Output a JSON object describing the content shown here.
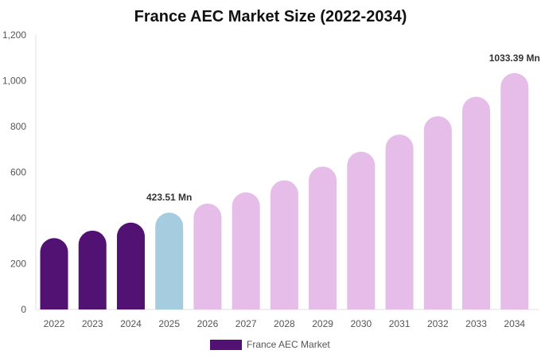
{
  "chart_data": {
    "type": "bar",
    "title": "France AEC Market Size (2022-2034)",
    "xlabel": "",
    "ylabel": "",
    "categories": [
      "2022",
      "2023",
      "2024",
      "2025",
      "2026",
      "2027",
      "2028",
      "2029",
      "2030",
      "2031",
      "2032",
      "2033",
      "2034"
    ],
    "series": [
      {
        "name": "France AEC Market",
        "values": [
          312,
          345,
          380,
          423.51,
          463,
          512,
          565,
          625,
          690,
          765,
          845,
          930,
          1033.39
        ]
      }
    ],
    "bar_colors": [
      "#521273",
      "#521273",
      "#521273",
      "#a6cce0",
      "#e6bce8",
      "#e6bce8",
      "#e6bce8",
      "#e6bce8",
      "#e6bce8",
      "#e6bce8",
      "#e6bce8",
      "#e6bce8",
      "#e6bce8"
    ],
    "legend_color": "#521273",
    "data_labels": [
      {
        "index": 3,
        "text": "423.51 Mn"
      },
      {
        "index": 12,
        "text": "1033.39 Mn"
      }
    ],
    "ylim": [
      0,
      1200
    ],
    "yticks": [
      0,
      200,
      400,
      600,
      800,
      1000,
      1200
    ],
    "ytick_labels": [
      "0",
      "200",
      "400",
      "600",
      "800",
      "1,000",
      "1,200"
    ],
    "grid": false,
    "legend_position": "bottom-center"
  }
}
